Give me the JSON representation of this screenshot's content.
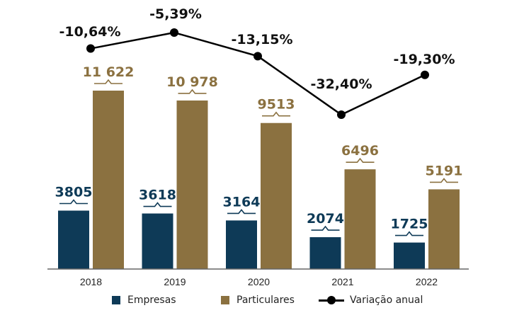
{
  "chart_data": {
    "type": "bar",
    "categories": [
      "2018",
      "2019",
      "2020",
      "2021",
      "2022"
    ],
    "series": [
      {
        "name": "Empresas",
        "values": [
          3805,
          3618,
          3164,
          2074,
          1725
        ],
        "color": "#0e3a57",
        "labels": [
          "3805",
          "3618",
          "3164",
          "2074",
          "1725"
        ]
      },
      {
        "name": "Particulares",
        "values": [
          11622,
          10978,
          9513,
          6496,
          5191
        ],
        "color": "#8b7140",
        "labels": [
          "11 622",
          "10 978",
          "9513",
          "6496",
          "5191"
        ]
      }
    ],
    "line_series": {
      "name": "Variação anual",
      "values": [
        -10.64,
        -5.39,
        -13.15,
        -32.4,
        -19.3
      ],
      "labels": [
        "-10,64%",
        "-5,39%",
        "-13,15%",
        "-32,40%",
        "-19,30%"
      ],
      "color": "#000000"
    },
    "legend_position": "bottom",
    "grid": false
  }
}
